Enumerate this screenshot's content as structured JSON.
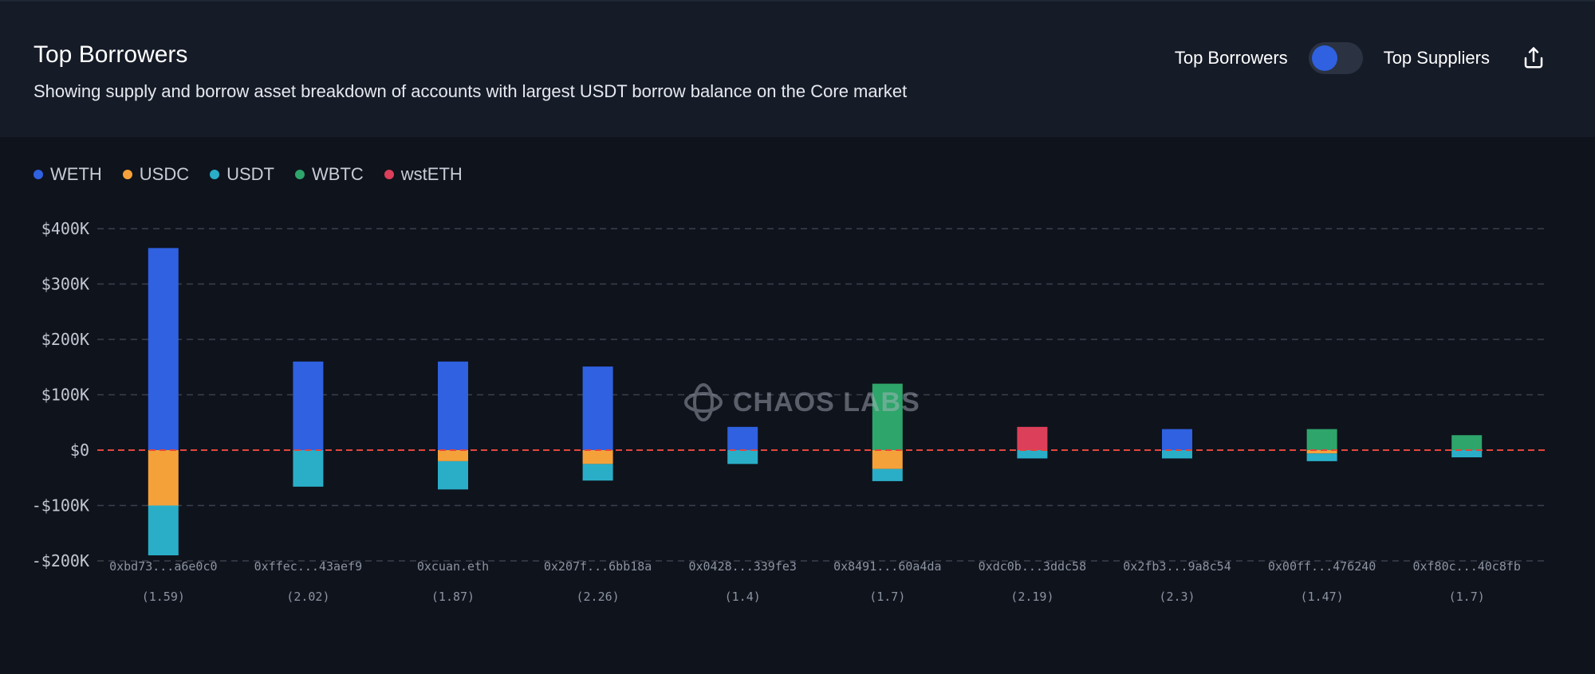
{
  "header": {
    "title": "Top Borrowers",
    "subtitle": "Showing supply and borrow asset breakdown of accounts with largest USDT borrow balance on the Core market",
    "toggle_left_label": "Top Borrowers",
    "toggle_right_label": "Top Suppliers",
    "toggle_state": "Top Borrowers",
    "export_icon": "share-export-icon"
  },
  "legend": [
    {
      "label": "WETH",
      "color": "#2f61e0"
    },
    {
      "label": "USDC",
      "color": "#f5a13a"
    },
    {
      "label": "USDT",
      "color": "#2aaec8"
    },
    {
      "label": "WBTC",
      "color": "#2ea56a"
    },
    {
      "label": "wstETH",
      "color": "#dc3f5a"
    }
  ],
  "watermark": {
    "text": "CHAOS LABS",
    "icon": "chaos-labs-logo-icon"
  },
  "chart_data": {
    "type": "bar",
    "stacked": true,
    "title": "Top Borrowers",
    "xlabel": "",
    "ylabel": "",
    "ylim": [
      -200000,
      400000
    ],
    "yticks": [
      400000,
      300000,
      200000,
      100000,
      0,
      -100000,
      -200000
    ],
    "ytick_labels": [
      "$400K",
      "$300K",
      "$200K",
      "$100K",
      "$0",
      "-$100K",
      "-$200K"
    ],
    "categories": [
      "0xbd73...a6e0c0",
      "0xffec...43aef9",
      "0xcuan.eth",
      "0x207f...6bb18a",
      "0x0428...339fe3",
      "0x8491...60a4da",
      "0xdc0b...3ddc58",
      "0x2fb3...9a8c54",
      "0x00ff...476240",
      "0xf80c...40c8fb"
    ],
    "health_factors": [
      "(1.59)",
      "(2.02)",
      "(1.87)",
      "(2.26)",
      "(1.4)",
      "(1.7)",
      "(2.19)",
      "(2.3)",
      "(1.47)",
      "(1.7)"
    ],
    "series": [
      {
        "name": "WETH",
        "color": "#2f61e0",
        "values": [
          365000,
          160000,
          160000,
          151000,
          42000,
          0,
          0,
          38000,
          0,
          0
        ]
      },
      {
        "name": "USDC",
        "color": "#f5a13a",
        "values": [
          -100000,
          0,
          -20000,
          -25000,
          0,
          -34000,
          0,
          0,
          -6000,
          0
        ]
      },
      {
        "name": "USDT",
        "color": "#2aaec8",
        "values": [
          -90000,
          -66000,
          -51000,
          -30000,
          -25000,
          -22000,
          -15000,
          -15000,
          -14000,
          -13000
        ]
      },
      {
        "name": "WBTC",
        "color": "#2ea56a",
        "values": [
          0,
          0,
          0,
          0,
          0,
          120000,
          0,
          0,
          38000,
          27000
        ]
      },
      {
        "name": "wstETH",
        "color": "#dc3f5a",
        "values": [
          0,
          0,
          0,
          0,
          0,
          0,
          42000,
          0,
          0,
          0
        ]
      }
    ],
    "zero_line": "dashed red"
  }
}
